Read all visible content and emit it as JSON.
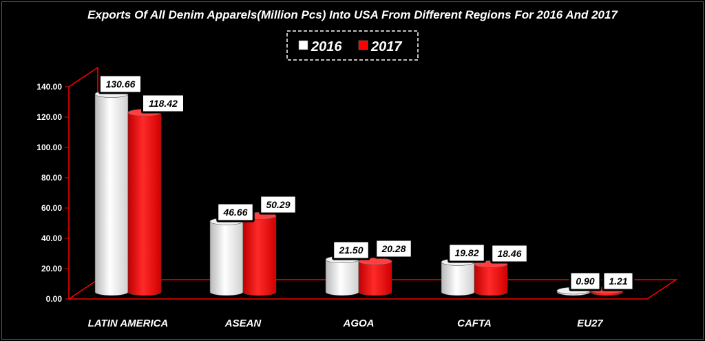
{
  "chart_data": {
    "type": "bar",
    "title": "Exports Of All Denim Apparels(Million Pcs) Into USA From Different Regions For 2016 And 2017",
    "categories": [
      "LATIN AMERICA",
      "ASEAN",
      "AGOA",
      "CAFTA",
      "EU27"
    ],
    "series": [
      {
        "name": "2016",
        "values": [
          130.66,
          46.66,
          21.5,
          19.82,
          0.9
        ],
        "color": "#ffffff"
      },
      {
        "name": "2017",
        "values": [
          118.42,
          50.29,
          20.28,
          18.46,
          1.21
        ],
        "color": "#ff0000"
      }
    ],
    "value_labels": [
      [
        "130.66",
        "46.66",
        "21.50",
        "19.82",
        "0.90"
      ],
      [
        "118.42",
        "50.29",
        "20.28",
        "18.46",
        "1.21"
      ]
    ],
    "yticks": [
      "0.00",
      "20.00",
      "40.00",
      "60.00",
      "80.00",
      "100.00",
      "120.00",
      "140.00"
    ],
    "ylim": [
      0,
      140
    ],
    "legend_position": "top-center",
    "background": "#000000",
    "axis_color": "#ff0000"
  }
}
